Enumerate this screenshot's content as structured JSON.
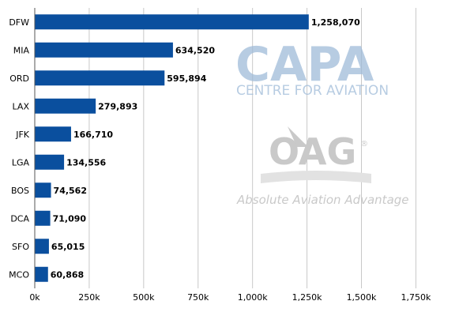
{
  "chart_data": {
    "type": "bar",
    "orientation": "horizontal",
    "categories": [
      "DFW",
      "MIA",
      "ORD",
      "LAX",
      "JFK",
      "LGA",
      "BOS",
      "DCA",
      "SFO",
      "MCO"
    ],
    "values": [
      1258070,
      634520,
      595894,
      279893,
      166710,
      134556,
      74562,
      71090,
      65015,
      60868
    ],
    "value_labels": [
      "1,258,070",
      "634,520",
      "595,894",
      "279,893",
      "166,710",
      "134,556",
      "74,562",
      "71,090",
      "65,015",
      "60,868"
    ],
    "xlim": [
      0,
      1850000
    ],
    "xticks": [
      0,
      250000,
      500000,
      750000,
      1000000,
      1250000,
      1500000,
      1750000
    ],
    "xtick_labels": [
      "0k",
      "250k",
      "500k",
      "750k",
      "1,000k",
      "1,250k",
      "1,500k",
      "1,750k"
    ],
    "grid": "vertical",
    "bar_color": "#0a4f9e",
    "title": "",
    "xlabel": "",
    "ylabel": ""
  },
  "watermarks": {
    "capa_logo": "CAPA",
    "capa_sub": "CENTRE FOR AVIATION",
    "oag_logo": "OAG",
    "oag_mark": "®",
    "oag_sub": "Absolute Aviation Advantage"
  },
  "colors": {
    "grid": "#c8c8c8",
    "axis": "#555555",
    "capa": "#9fbbd9",
    "oag": "#c9c9c9"
  }
}
